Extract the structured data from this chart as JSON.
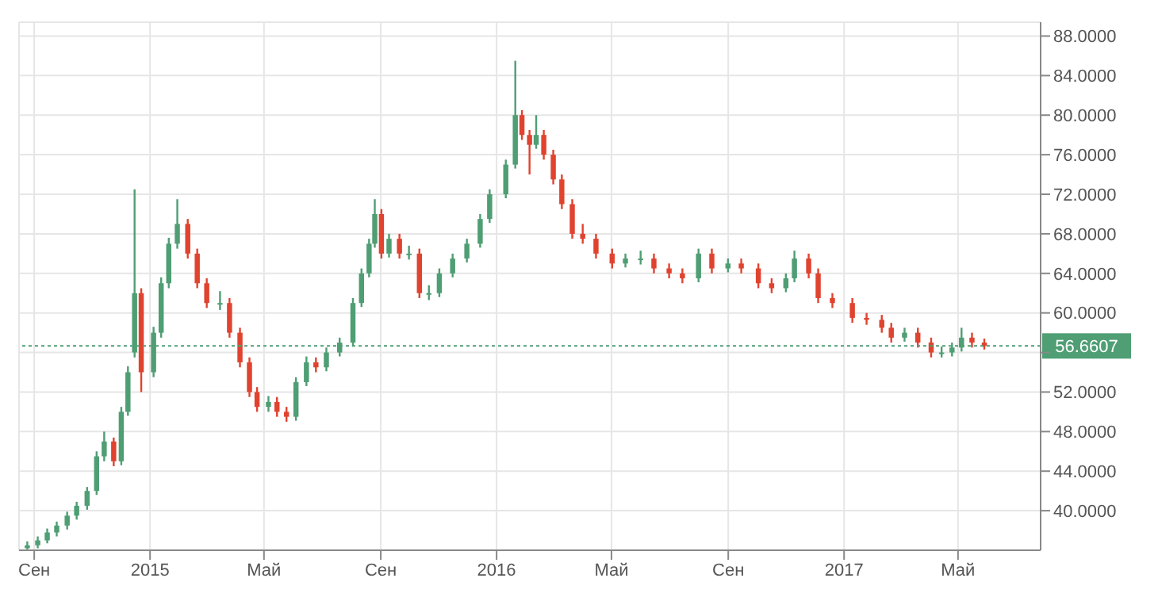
{
  "chart_data": {
    "type": "candlestick",
    "x": [
      "2014-08-25",
      "2014-09-05",
      "2014-09-15",
      "2014-09-25",
      "2014-10-06",
      "2014-10-16",
      "2014-10-27",
      "2014-11-06",
      "2014-11-14",
      "2014-11-24",
      "2014-12-02",
      "2014-12-09",
      "2014-12-16",
      "2014-12-23",
      "2015-01-05",
      "2015-01-13",
      "2015-01-21",
      "2015-01-30",
      "2015-02-10",
      "2015-02-20",
      "2015-03-02",
      "2015-03-16",
      "2015-03-26",
      "2015-04-06",
      "2015-04-16",
      "2015-04-24",
      "2015-05-06",
      "2015-05-15",
      "2015-05-25",
      "2015-06-04",
      "2015-06-15",
      "2015-06-25",
      "2015-07-06",
      "2015-07-20",
      "2015-08-03",
      "2015-08-12",
      "2015-08-20",
      "2015-08-26",
      "2015-09-02",
      "2015-09-10",
      "2015-09-21",
      "2015-10-01",
      "2015-10-12",
      "2015-10-22",
      "2015-11-02",
      "2015-11-16",
      "2015-12-01",
      "2015-12-15",
      "2015-12-25",
      "2016-01-11",
      "2016-01-21",
      "2016-01-28",
      "2016-02-05",
      "2016-02-12",
      "2016-02-20",
      "2016-03-01",
      "2016-03-10",
      "2016-03-21",
      "2016-04-01",
      "2016-04-15",
      "2016-05-02",
      "2016-05-16",
      "2016-06-01",
      "2016-06-15",
      "2016-07-01",
      "2016-07-15",
      "2016-08-01",
      "2016-08-15",
      "2016-09-01",
      "2016-09-15",
      "2016-10-03",
      "2016-10-17",
      "2016-11-01",
      "2016-11-10",
      "2016-11-25",
      "2016-12-05",
      "2016-12-20",
      "2017-01-10",
      "2017-01-25",
      "2017-02-10",
      "2017-02-20",
      "2017-03-06",
      "2017-03-20",
      "2017-04-03",
      "2017-04-14",
      "2017-04-25",
      "2017-05-05",
      "2017-05-16",
      "2017-05-29"
    ],
    "ohlc": [
      [
        36.2,
        36.9,
        36.1,
        36.5
      ],
      [
        36.5,
        37.4,
        36.2,
        37.0
      ],
      [
        37.0,
        38.2,
        36.7,
        37.8
      ],
      [
        37.8,
        38.9,
        37.4,
        38.5
      ],
      [
        38.5,
        39.9,
        38.1,
        39.5
      ],
      [
        39.5,
        40.9,
        39.1,
        40.5
      ],
      [
        40.5,
        42.4,
        40.1,
        42.0
      ],
      [
        42.0,
        46.0,
        41.6,
        45.5
      ],
      [
        45.5,
        48.0,
        45.0,
        47.0
      ],
      [
        47.0,
        47.4,
        44.5,
        45.0
      ],
      [
        45.0,
        50.5,
        44.6,
        50.0
      ],
      [
        50.0,
        54.6,
        49.6,
        54.0
      ],
      [
        56.0,
        72.5,
        55.5,
        62.0
      ],
      [
        62.0,
        62.5,
        52.0,
        54.0
      ],
      [
        54.0,
        58.6,
        53.5,
        58.0
      ],
      [
        58.0,
        63.6,
        57.5,
        63.0
      ],
      [
        63.0,
        67.6,
        62.5,
        67.0
      ],
      [
        67.0,
        71.5,
        66.5,
        69.0
      ],
      [
        69.0,
        69.5,
        65.5,
        66.0
      ],
      [
        66.0,
        66.5,
        62.5,
        63.0
      ],
      [
        63.0,
        63.5,
        60.5,
        61.0
      ],
      [
        61.0,
        62.2,
        60.3,
        61.0
      ],
      [
        61.0,
        61.5,
        57.5,
        58.0
      ],
      [
        58.0,
        58.5,
        54.5,
        55.0
      ],
      [
        55.0,
        55.5,
        51.5,
        52.0
      ],
      [
        52.0,
        52.5,
        50.0,
        50.5
      ],
      [
        50.5,
        51.6,
        50.0,
        51.0
      ],
      [
        51.0,
        51.5,
        49.5,
        50.0
      ],
      [
        50.0,
        50.5,
        49.0,
        49.5
      ],
      [
        49.5,
        53.5,
        49.1,
        53.0
      ],
      [
        53.0,
        55.6,
        52.6,
        55.0
      ],
      [
        55.0,
        55.5,
        54.0,
        54.5
      ],
      [
        54.5,
        56.5,
        54.1,
        56.0
      ],
      [
        56.0,
        57.5,
        55.6,
        57.0
      ],
      [
        57.0,
        61.5,
        56.6,
        61.0
      ],
      [
        61.0,
        64.5,
        60.6,
        64.0
      ],
      [
        64.0,
        67.5,
        63.6,
        67.0
      ],
      [
        67.0,
        71.5,
        66.6,
        70.0
      ],
      [
        70.0,
        70.5,
        65.5,
        66.0
      ],
      [
        66.0,
        68.0,
        65.6,
        67.5
      ],
      [
        67.5,
        68.0,
        65.5,
        66.0
      ],
      [
        66.0,
        66.8,
        65.4,
        66.0
      ],
      [
        66.0,
        66.5,
        61.5,
        62.0
      ],
      [
        62.0,
        62.8,
        61.3,
        62.0
      ],
      [
        62.0,
        64.5,
        61.6,
        64.0
      ],
      [
        64.0,
        66.0,
        63.6,
        65.5
      ],
      [
        65.5,
        67.5,
        65.1,
        67.0
      ],
      [
        67.0,
        70.0,
        66.6,
        69.5
      ],
      [
        69.5,
        72.5,
        69.1,
        72.0
      ],
      [
        72.0,
        75.5,
        71.6,
        75.0
      ],
      [
        75.0,
        85.5,
        74.6,
        80.0
      ],
      [
        80.0,
        80.5,
        77.5,
        78.0
      ],
      [
        78.0,
        78.5,
        74.0,
        77.0
      ],
      [
        77.0,
        80.0,
        76.6,
        78.0
      ],
      [
        78.0,
        78.5,
        75.5,
        76.0
      ],
      [
        76.0,
        76.5,
        73.0,
        73.5
      ],
      [
        73.5,
        74.0,
        70.5,
        71.0
      ],
      [
        71.0,
        71.5,
        67.5,
        68.0
      ],
      [
        68.0,
        69.0,
        67.0,
        67.5
      ],
      [
        67.5,
        68.0,
        65.5,
        66.0
      ],
      [
        66.0,
        66.5,
        64.5,
        65.0
      ],
      [
        65.0,
        66.0,
        64.6,
        65.5
      ],
      [
        65.5,
        66.3,
        64.9,
        65.5
      ],
      [
        65.5,
        66.0,
        64.0,
        64.5
      ],
      [
        64.5,
        65.0,
        63.5,
        64.0
      ],
      [
        64.0,
        64.5,
        63.0,
        63.5
      ],
      [
        63.5,
        66.5,
        63.1,
        66.0
      ],
      [
        66.0,
        66.5,
        64.0,
        64.5
      ],
      [
        64.5,
        65.5,
        64.1,
        65.0
      ],
      [
        65.0,
        65.5,
        64.0,
        64.5
      ],
      [
        64.5,
        65.0,
        62.5,
        63.0
      ],
      [
        63.0,
        63.5,
        62.0,
        62.5
      ],
      [
        62.5,
        64.0,
        62.1,
        63.5
      ],
      [
        63.5,
        66.3,
        63.1,
        65.5
      ],
      [
        65.5,
        66.0,
        63.5,
        64.0
      ],
      [
        64.0,
        64.5,
        61.0,
        61.5
      ],
      [
        61.5,
        62.0,
        60.5,
        61.0
      ],
      [
        61.0,
        61.5,
        59.0,
        59.5
      ],
      [
        59.5,
        60.0,
        58.8,
        59.3
      ],
      [
        59.3,
        59.8,
        58.0,
        58.5
      ],
      [
        58.5,
        59.0,
        57.0,
        57.5
      ],
      [
        57.5,
        58.5,
        57.1,
        58.0
      ],
      [
        58.0,
        58.5,
        56.5,
        57.0
      ],
      [
        57.0,
        57.5,
        55.5,
        56.0
      ],
      [
        56.0,
        56.6,
        55.5,
        56.0
      ],
      [
        56.0,
        57.0,
        55.6,
        56.5
      ],
      [
        56.5,
        58.5,
        56.1,
        57.5
      ],
      [
        57.5,
        58.0,
        56.5,
        57.0
      ],
      [
        57.0,
        57.4,
        56.3,
        56.66
      ]
    ],
    "colors": [
      "#4f9e74",
      "#4f9e74",
      "#4f9e74",
      "#4f9e74",
      "#4f9e74",
      "#4f9e74",
      "#4f9e74",
      "#4f9e74",
      "#4f9e74",
      "#e0432f",
      "#4f9e74",
      "#4f9e74",
      "#4f9e74",
      "#e0432f",
      "#4f9e74",
      "#4f9e74",
      "#4f9e74",
      "#4f9e74",
      "#e0432f",
      "#e0432f",
      "#e0432f",
      "#4f9e74",
      "#e0432f",
      "#e0432f",
      "#e0432f",
      "#e0432f",
      "#4f9e74",
      "#e0432f",
      "#e0432f",
      "#4f9e74",
      "#4f9e74",
      "#e0432f",
      "#4f9e74",
      "#4f9e74",
      "#4f9e74",
      "#4f9e74",
      "#4f9e74",
      "#4f9e74",
      "#e0432f",
      "#4f9e74",
      "#e0432f",
      "#4f9e74",
      "#e0432f",
      "#4f9e74",
      "#4f9e74",
      "#4f9e74",
      "#4f9e74",
      "#4f9e74",
      "#4f9e74",
      "#4f9e74",
      "#4f9e74",
      "#e0432f",
      "#e0432f",
      "#4f9e74",
      "#e0432f",
      "#e0432f",
      "#e0432f",
      "#e0432f",
      "#e0432f",
      "#e0432f",
      "#e0432f",
      "#4f9e74",
      "#4f9e74",
      "#e0432f",
      "#e0432f",
      "#e0432f",
      "#4f9e74",
      "#e0432f",
      "#4f9e74",
      "#e0432f",
      "#e0432f",
      "#e0432f",
      "#4f9e74",
      "#4f9e74",
      "#e0432f",
      "#e0432f",
      "#e0432f",
      "#e0432f",
      "#e0432f",
      "#e0432f",
      "#e0432f",
      "#4f9e74",
      "#e0432f",
      "#e0432f",
      "#4f9e74",
      "#4f9e74",
      "#4f9e74",
      "#e0432f",
      "#e0432f"
    ],
    "xlim": [
      "2014-08-16",
      "2017-07-27"
    ],
    "xticks": [
      {
        "value": "2014-09-01",
        "label": "Сен"
      },
      {
        "value": "2015-01-01",
        "label": "2015"
      },
      {
        "value": "2015-05-01",
        "label": "Май"
      },
      {
        "value": "2015-09-01",
        "label": "Сен"
      },
      {
        "value": "2016-01-01",
        "label": "2016"
      },
      {
        "value": "2016-05-01",
        "label": "Май"
      },
      {
        "value": "2016-09-01",
        "label": "Сен"
      },
      {
        "value": "2017-01-01",
        "label": "2017"
      },
      {
        "value": "2017-05-01",
        "label": "Май"
      }
    ],
    "ylim": [
      36,
      89.4
    ],
    "yticks": [
      {
        "value": 40,
        "label": "40.0000"
      },
      {
        "value": 44,
        "label": "44.0000"
      },
      {
        "value": 48,
        "label": "48.0000"
      },
      {
        "value": 52,
        "label": "52.0000"
      },
      {
        "value": 56,
        "label": null
      },
      {
        "value": 60,
        "label": "60.0000"
      },
      {
        "value": 64,
        "label": "64.0000"
      },
      {
        "value": 68,
        "label": "68.0000"
      },
      {
        "value": 72,
        "label": "72.0000"
      },
      {
        "value": 76,
        "label": "76.0000"
      },
      {
        "value": 80,
        "label": "80.0000"
      },
      {
        "value": 84,
        "label": "84.0000"
      },
      {
        "value": 88,
        "label": "88.0000"
      }
    ],
    "ref_lines": [
      {
        "axis": "y",
        "value": 56.6607,
        "label": "56.6607",
        "color": "#4f9e74",
        "line_style": "dotted"
      }
    ],
    "grid": true
  }
}
